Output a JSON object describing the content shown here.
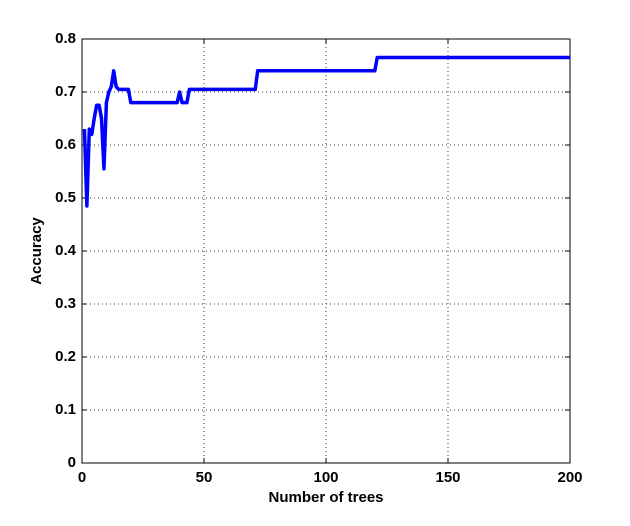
{
  "chart_data": {
    "type": "line",
    "xlabel": "Number of trees",
    "ylabel": "Accuracy",
    "x": [
      1,
      2,
      3,
      4,
      5,
      6,
      7,
      8,
      9,
      10,
      11,
      12,
      13,
      14,
      15,
      19,
      20,
      39,
      40,
      41,
      43,
      44,
      71,
      72,
      120,
      121,
      200
    ],
    "values": [
      0.63,
      0.485,
      0.63,
      0.62,
      0.65,
      0.675,
      0.675,
      0.65,
      0.555,
      0.68,
      0.7,
      0.71,
      0.74,
      0.71,
      0.705,
      0.705,
      0.68,
      0.68,
      0.7,
      0.68,
      0.68,
      0.705,
      0.705,
      0.74,
      0.74,
      0.765,
      0.765
    ],
    "color": "#0000ff",
    "xlim": [
      0,
      200
    ],
    "xticks": [
      0,
      50,
      100,
      150,
      200
    ],
    "ylim": [
      0,
      0.8
    ],
    "yticks": [
      0,
      0.1,
      0.2,
      0.3,
      0.4,
      0.5,
      0.6,
      0.7,
      0.8
    ],
    "grid": true
  }
}
